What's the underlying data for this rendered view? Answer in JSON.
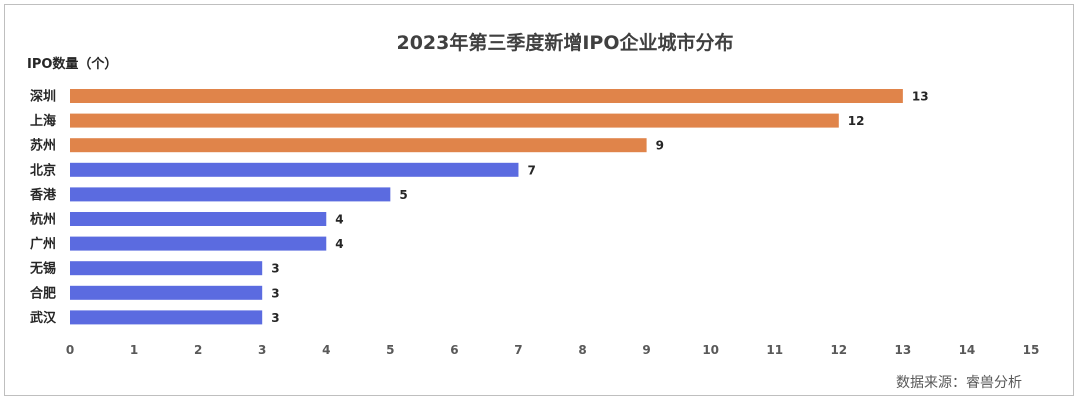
{
  "colors": {
    "highlight": "#E0844A",
    "normal": "#5B6BE0"
  },
  "source_text": "数据来源：睿兽分析",
  "chart_data": {
    "type": "bar",
    "orientation": "horizontal",
    "title": "2023年第三季度新增IPO企业城市分布",
    "ylabel": "IPO数量（个）",
    "xlim": [
      0,
      15
    ],
    "xticks": [
      "0",
      "1",
      "2",
      "3",
      "4",
      "5",
      "6",
      "7",
      "8",
      "9",
      "10",
      "11",
      "12",
      "13",
      "14",
      "15"
    ],
    "categories": [
      "深圳",
      "上海",
      "苏州",
      "北京",
      "香港",
      "杭州",
      "广州",
      "无锡",
      "合肥",
      "武汉"
    ],
    "values": [
      13,
      12,
      9,
      7,
      5,
      4,
      4,
      3,
      3,
      3
    ],
    "highlighted_categories": [
      "深圳",
      "上海",
      "苏州"
    ],
    "grid": false,
    "data_labels": true
  }
}
